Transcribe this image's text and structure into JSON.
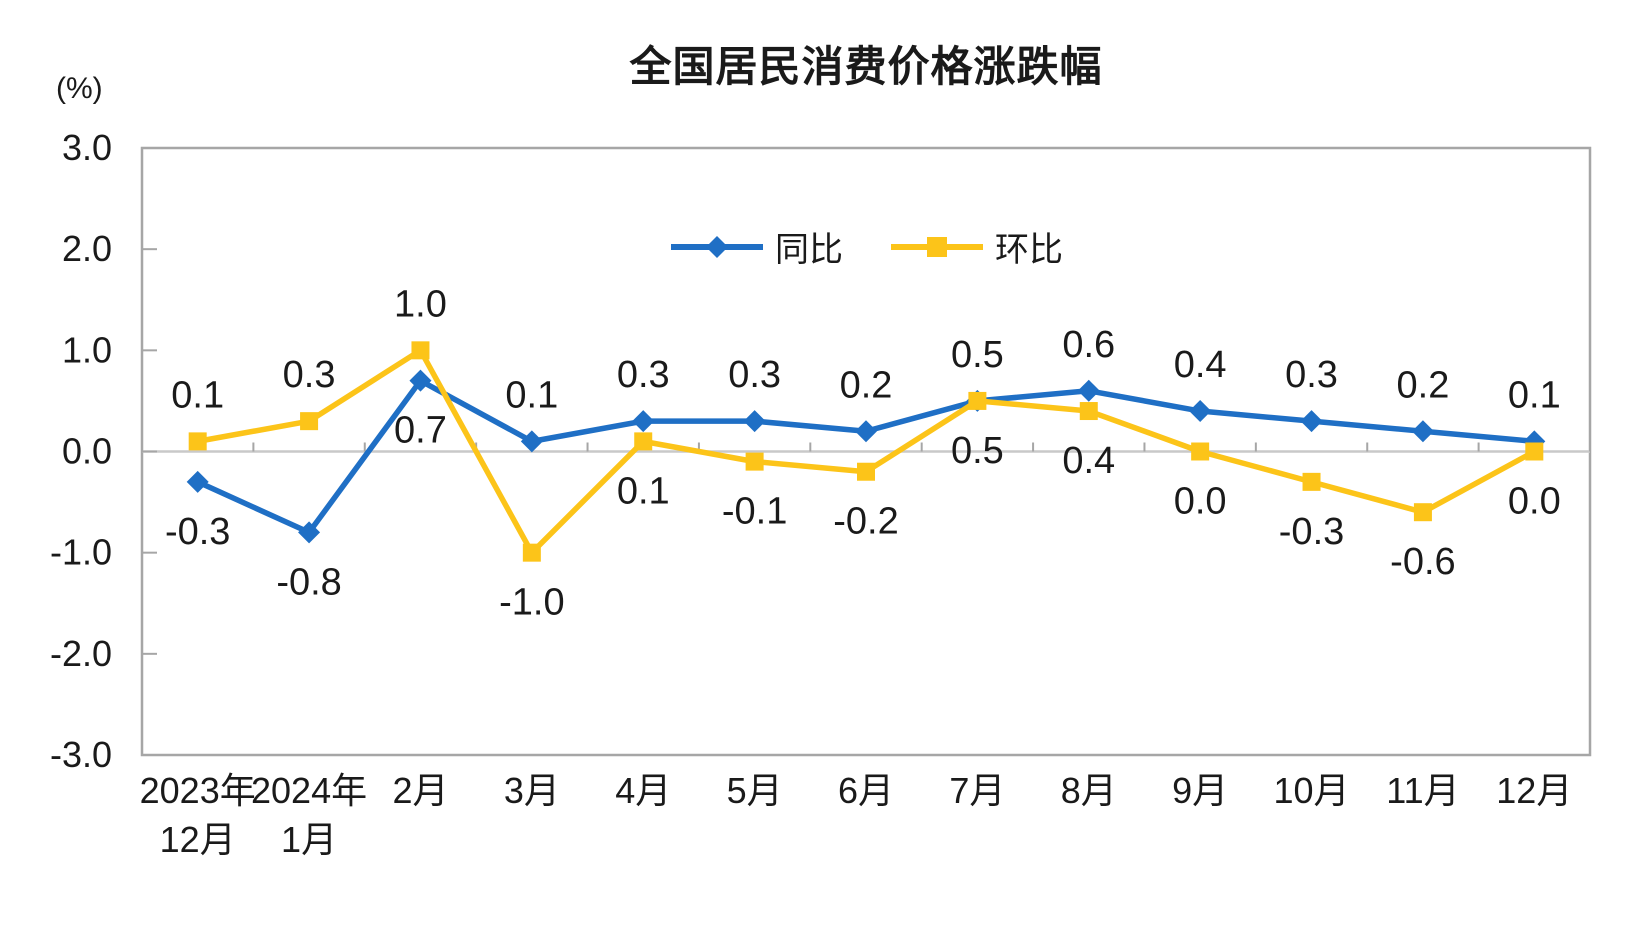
{
  "chart": {
    "title": "全国居民消费价格涨跌幅",
    "unit_label": "(%)"
  },
  "chart_data": {
    "type": "line",
    "title": "全国居民消费价格涨跌幅",
    "ylabel": "(%)",
    "xlabel": "",
    "ylim": [
      -3.0,
      3.0
    ],
    "ytick_interval": 1.0,
    "ytick_values": [
      3,
      2,
      1,
      0,
      -1,
      -2,
      -3
    ],
    "ytick_labels": [
      "3.0",
      "2.0",
      "1.0",
      "0.0",
      "-1.0",
      "-2.0",
      "-3.0"
    ],
    "grid": "zero-line-only",
    "legend_position": "top-center-inside",
    "categories": [
      [
        "2023年",
        "12月"
      ],
      [
        "2024年",
        "1月"
      ],
      [
        "2月"
      ],
      [
        "3月"
      ],
      [
        "4月"
      ],
      [
        "5月"
      ],
      [
        "6月"
      ],
      [
        "7月"
      ],
      [
        "8月"
      ],
      [
        "9月"
      ],
      [
        "10月"
      ],
      [
        "11月"
      ],
      [
        "12月"
      ]
    ],
    "series": [
      {
        "name": "同比",
        "color": "#1F6FC5",
        "marker": "diamond",
        "values": [
          -0.3,
          -0.8,
          0.7,
          0.1,
          0.3,
          0.3,
          0.2,
          0.5,
          0.6,
          0.4,
          0.3,
          0.2,
          0.1
        ],
        "label_side": [
          "below",
          "below",
          "below",
          "above",
          "above",
          "above",
          "above",
          "above",
          "above",
          "above",
          "above",
          "above",
          "above"
        ]
      },
      {
        "name": "环比",
        "color": "#FCC419",
        "marker": "square",
        "values": [
          0.1,
          0.3,
          1.0,
          -1.0,
          0.1,
          -0.1,
          -0.2,
          0.5,
          0.4,
          0.0,
          -0.3,
          -0.6,
          0.0
        ],
        "label_side": [
          "above",
          "above",
          "above",
          "below",
          "below",
          "below",
          "below",
          "below",
          "below",
          "below",
          "below",
          "below",
          "below"
        ]
      }
    ],
    "colors": {
      "plot_border": "#A6A6A6",
      "zero_line": "#C9C9C9",
      "tick": "#A6A6A6",
      "text": "#1a1a1a"
    }
  }
}
